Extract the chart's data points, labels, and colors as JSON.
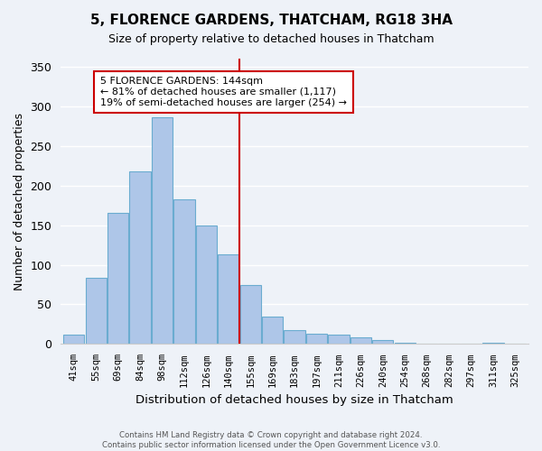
{
  "title": "5, FLORENCE GARDENS, THATCHAM, RG18 3HA",
  "subtitle": "Size of property relative to detached houses in Thatcham",
  "xlabel": "Distribution of detached houses by size in Thatcham",
  "ylabel": "Number of detached properties",
  "bin_labels": [
    "41sqm",
    "55sqm",
    "69sqm",
    "84sqm",
    "98sqm",
    "112sqm",
    "126sqm",
    "140sqm",
    "155sqm",
    "169sqm",
    "183sqm",
    "197sqm",
    "211sqm",
    "226sqm",
    "240sqm",
    "254sqm",
    "268sqm",
    "282sqm",
    "297sqm",
    "311sqm",
    "325sqm"
  ],
  "bar_heights": [
    12,
    84,
    165,
    218,
    286,
    183,
    150,
    113,
    75,
    35,
    18,
    13,
    12,
    8,
    5,
    2,
    1,
    1,
    0,
    2,
    1
  ],
  "bar_color": "#aec6e8",
  "bar_edge_color": "#6aacd0",
  "vline_x": 7.5,
  "vline_color": "#cc0000",
  "annotation_title": "5 FLORENCE GARDENS: 144sqm",
  "annotation_line1": "← 81% of detached houses are smaller (1,117)",
  "annotation_line2": "19% of semi-detached houses are larger (254) →",
  "annotation_box_color": "#ffffff",
  "annotation_box_edge": "#cc0000",
  "ylim": [
    0,
    360
  ],
  "yticks": [
    0,
    50,
    100,
    150,
    200,
    250,
    300,
    350
  ],
  "footer_line1": "Contains HM Land Registry data © Crown copyright and database right 2024.",
  "footer_line2": "Contains public sector information licensed under the Open Government Licence v3.0.",
  "background_color": "#eef2f8"
}
